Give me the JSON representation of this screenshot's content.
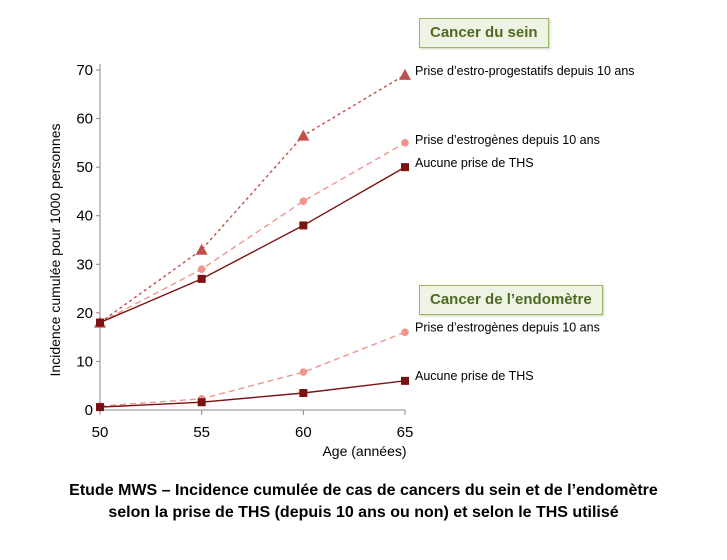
{
  "chart_data": {
    "type": "line",
    "ylabel": "Incidence cumulée pour 1000 personnes",
    "xlabel": "Age (années)",
    "x": [
      50,
      55,
      60,
      65
    ],
    "xticks": [
      "50",
      "55",
      "60",
      "65"
    ],
    "yticks": [
      "0",
      "10",
      "20",
      "30",
      "40",
      "50",
      "60",
      "70"
    ],
    "xlim": [
      50,
      65
    ],
    "ylim": [
      0,
      70
    ],
    "grid": false,
    "groups": [
      {
        "title": "Cancer du sein"
      },
      {
        "title": "Cancer de l’endomètre"
      }
    ],
    "series": [
      {
        "name": "Prise d’estro-progestatifs depuis 10 ans",
        "group": "Cancer du sein",
        "values": [
          18,
          33,
          56.5,
          69
        ],
        "color": "#c0504d",
        "marker": "triangle",
        "dash": "dotted"
      },
      {
        "name": "Prise d’estrogènes depuis 10 ans",
        "group": "Cancer du sein",
        "values": [
          18,
          29,
          43,
          55
        ],
        "color": "#f0948d",
        "marker": "circle",
        "dash": "dashed"
      },
      {
        "name": "Aucune prise de THS",
        "group": "Cancer du sein",
        "values": [
          18,
          27,
          38,
          50
        ],
        "color": "#7b1111",
        "marker": "square",
        "dash": "solid"
      },
      {
        "name": "Prise d’estrogènes depuis 10 ans",
        "group": "Cancer de l’endomètre",
        "values": [
          0.8,
          2.3,
          7.8,
          16
        ],
        "color": "#f0948d",
        "marker": "circle",
        "dash": "dashed"
      },
      {
        "name": "Aucune prise de THS",
        "group": "Cancer de l’endomètre",
        "values": [
          0.6,
          1.6,
          3.5,
          6
        ],
        "color": "#7b1111",
        "marker": "square",
        "dash": "solid"
      }
    ]
  },
  "caption": {
    "line1": "Etude MWS – Incidence cumulée de cas de cancers du sein et de l’endomètre",
    "line2": "selon la prise de THS (depuis 10 ans ou non) et selon le THS utilisé"
  }
}
